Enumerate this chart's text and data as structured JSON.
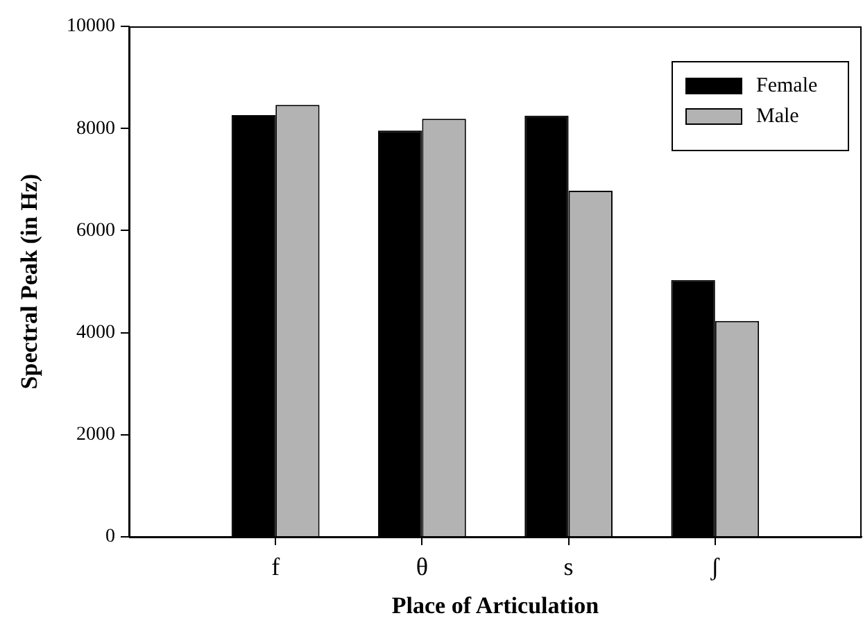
{
  "chart_data": {
    "type": "bar",
    "xlabel": "Place of Articulation",
    "ylabel": "Spectral Peak (in Hz)",
    "categories": [
      "f",
      "θ",
      "s",
      "ʃ"
    ],
    "series": [
      {
        "name": "Female",
        "color": "#000000",
        "values": [
          8260,
          7960,
          8250,
          5030
        ]
      },
      {
        "name": "Male",
        "color": "#b3b3b3",
        "values": [
          8460,
          8190,
          6780,
          4230
        ]
      }
    ],
    "ylim": [
      0,
      10000
    ],
    "yticks": [
      0,
      2000,
      4000,
      6000,
      8000,
      10000
    ],
    "grid": false,
    "legend": "top right"
  }
}
